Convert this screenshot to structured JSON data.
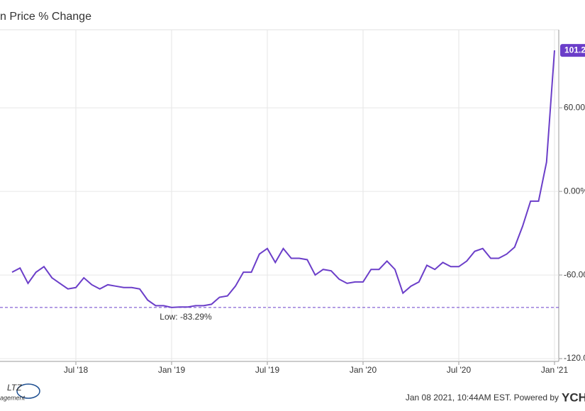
{
  "chart_data": {
    "type": "line",
    "title": "n Price % Change",
    "categories": [
      null,
      null,
      null,
      null,
      null,
      null,
      null,
      null,
      "Jul '18",
      null,
      null,
      null,
      null,
      null,
      null,
      null,
      null,
      null,
      null,
      null,
      "Jan '19",
      null,
      null,
      null,
      null,
      null,
      null,
      null,
      null,
      null,
      null,
      null,
      "Jul '19",
      null,
      null,
      null,
      null,
      null,
      null,
      null,
      null,
      null,
      null,
      null,
      "Jan '20",
      null,
      null,
      null,
      null,
      null,
      null,
      null,
      null,
      null,
      null,
      null,
      "Jul '20",
      null,
      null,
      null,
      null,
      null,
      null,
      null,
      null,
      null,
      null,
      null,
      "Jan '21"
    ],
    "series": [
      {
        "color": "#6b3ec9",
        "values": [
          -58,
          -55,
          -66,
          -58,
          -54,
          -62,
          -66,
          -70,
          -69,
          -62,
          -67,
          -70,
          -67,
          -68,
          -69,
          -69,
          -70,
          -78,
          -82,
          -82,
          -83.29,
          -83,
          -83,
          -82,
          -82,
          -81,
          -76,
          -75,
          -68,
          -58,
          -58,
          -45,
          -41,
          -51,
          -41,
          -48,
          -48,
          -49,
          -60,
          -56,
          -57,
          -63,
          -66,
          -65,
          -65,
          -56,
          -56,
          -50,
          -56,
          -73,
          -68,
          -65,
          -53,
          -56,
          -51,
          -54,
          -54,
          -50,
          -43,
          -41,
          -48,
          -48,
          -45,
          -40,
          -25,
          -7,
          -7,
          21,
          101.2
        ]
      }
    ],
    "last_label": "101.2",
    "low": {
      "value": -83.29,
      "label": "Low: -83.29%"
    },
    "ylim": [
      -122,
      116
    ],
    "yticks": [
      {
        "value": 60,
        "label": "60.00"
      },
      {
        "value": 0,
        "label": "0.00%"
      },
      {
        "value": -60,
        "label": "-60.00"
      },
      {
        "value": -120,
        "label": "-120.0"
      }
    ],
    "grid": true,
    "footer": "Jan 08 2021, 10:44AM EST. Powered by",
    "brand": "YCHA",
    "logo": "LTZ",
    "logo_sub": "agement"
  }
}
